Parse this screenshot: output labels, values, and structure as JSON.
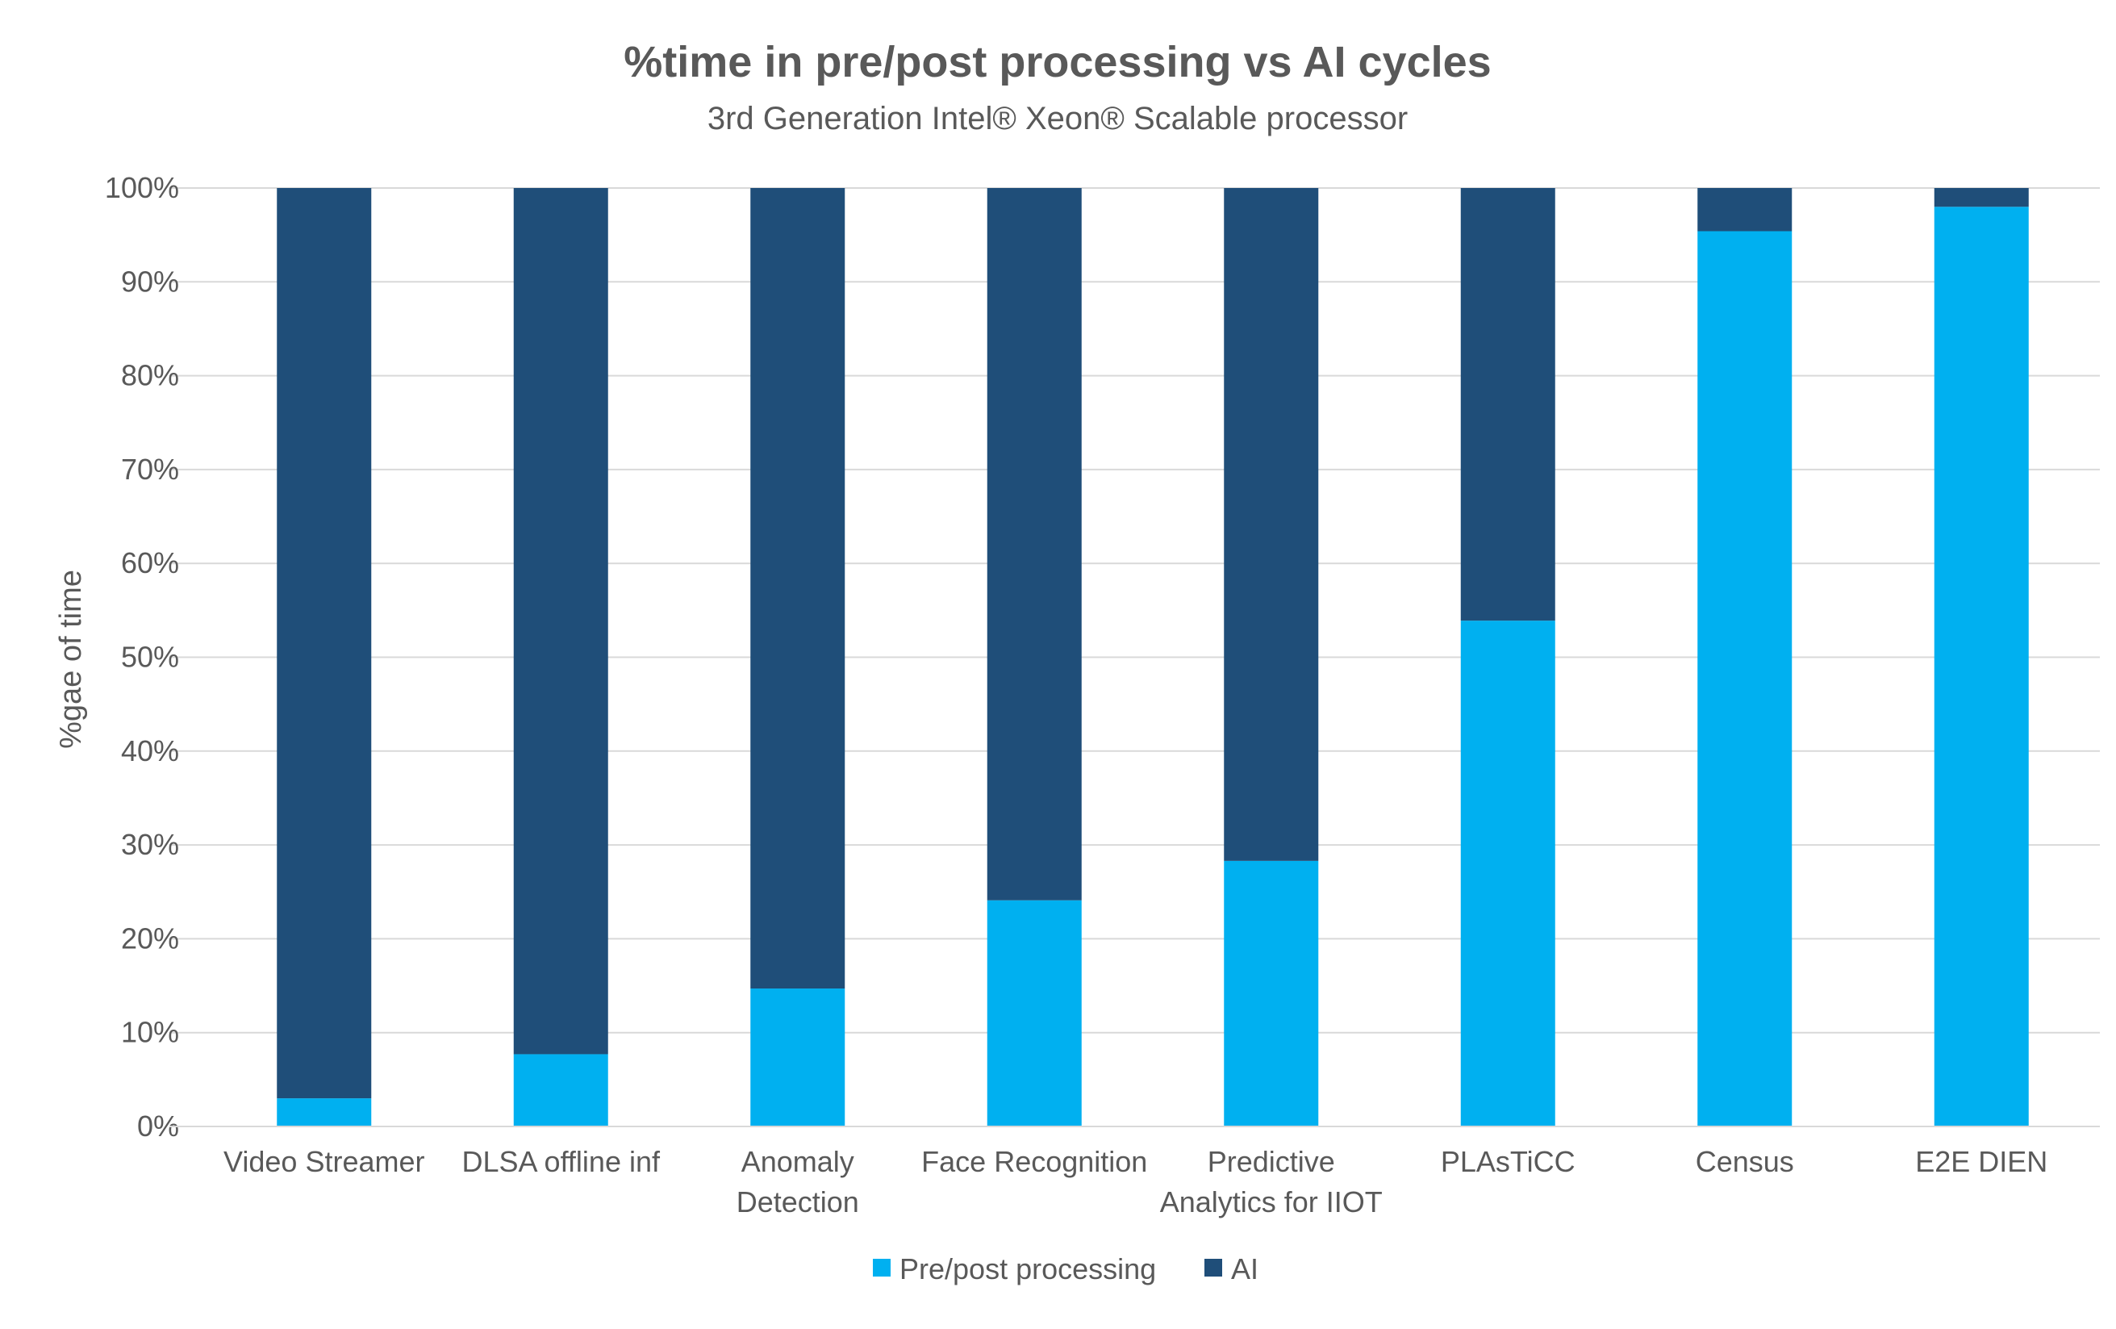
{
  "chart_data": {
    "type": "bar",
    "stacked": true,
    "title": "%time in pre/post processing vs AI cycles",
    "subtitle": "3rd Generation Intel® Xeon® Scalable processor",
    "xlabel": "",
    "ylabel": "%gae  of time",
    "ylim": [
      0,
      100
    ],
    "yticks": [
      0,
      10,
      20,
      30,
      40,
      50,
      60,
      70,
      80,
      90,
      100
    ],
    "ytick_labels": [
      "0%",
      "10%",
      "20%",
      "30%",
      "40%",
      "50%",
      "60%",
      "70%",
      "80%",
      "90%",
      "100%"
    ],
    "grid": true,
    "legend_position": "bottom-center",
    "categories": [
      [
        "Video Streamer"
      ],
      [
        "DLSA offline inf"
      ],
      [
        "Anomaly",
        "Detection"
      ],
      [
        "Face Recognition"
      ],
      [
        "Predictive",
        "Analytics for IIOT"
      ],
      [
        "PLAsTiCC"
      ],
      [
        "Census"
      ],
      [
        "E2E DIEN"
      ]
    ],
    "series": [
      {
        "name": "Pre/post processing",
        "color": "#00b0f0",
        "values": [
          3,
          7.7,
          14.7,
          24.1,
          28.3,
          53.9,
          95.4,
          98
        ]
      },
      {
        "name": "AI",
        "color": "#1f4e79",
        "values": [
          97,
          92.3,
          85.3,
          75.9,
          71.7,
          46.1,
          4.6,
          2
        ]
      }
    ]
  }
}
